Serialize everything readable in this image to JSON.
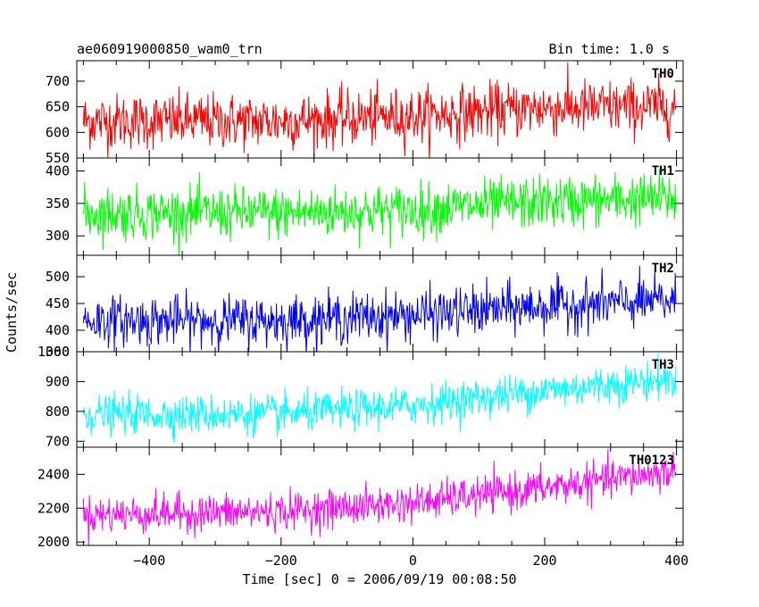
{
  "header": {
    "title": "ae060919000850_wam0_trn",
    "bin_time": "Bin time: 1.0 s"
  },
  "chart_data": {
    "type": "line",
    "xlabel": "Time [sec] 0 = 2006/09/19 00:08:50",
    "ylabel": "Counts/sec",
    "xlim": [
      -510,
      410
    ],
    "x_ticks": [
      -400,
      -200,
      0,
      200,
      400
    ],
    "x_tick_labels": [
      "−400",
      "−200",
      "0",
      "200",
      "400"
    ],
    "x_data_range": [
      -500,
      399
    ],
    "bin_time_s": 1.0,
    "panels": [
      {
        "name": "TH0",
        "color": "#ff0000",
        "ylim": [
          550,
          740
        ],
        "y_ticks": [
          550,
          600,
          650,
          700
        ],
        "y_tick_labels": [
          "550",
          "600",
          "650",
          "700"
        ],
        "trend": {
          "x": [
            -500,
            -200,
            0,
            200,
            400
          ],
          "y": [
            622,
            622,
            632,
            648,
            650
          ]
        },
        "noise_sd": 27
      },
      {
        "name": "TH1",
        "color": "#00ff00",
        "ylim": [
          270,
          420
        ],
        "y_ticks": [
          300,
          350,
          400
        ],
        "y_tick_labels": [
          "300",
          "350",
          "400"
        ],
        "trend": {
          "x": [
            -500,
            -200,
            0,
            200,
            400
          ],
          "y": [
            335,
            335,
            340,
            352,
            358
          ]
        },
        "noise_sd": 20
      },
      {
        "name": "TH2",
        "color": "#0000ff",
        "ylim": [
          360,
          540
        ],
        "y_ticks": [
          360,
          400,
          450,
          500
        ],
        "y_tick_labels": [
          "360",
          "400",
          "450",
          "500"
        ],
        "trend": {
          "x": [
            -500,
            -200,
            0,
            200,
            400
          ],
          "y": [
            418,
            418,
            428,
            445,
            455
          ]
        },
        "noise_sd": 23
      },
      {
        "name": "TH3",
        "color": "#00ffff",
        "ylim": [
          680,
          1000
        ],
        "y_ticks": [
          700,
          800,
          900,
          1000
        ],
        "y_tick_labels": [
          "700",
          "800",
          "900",
          "1000"
        ],
        "trend": {
          "x": [
            -500,
            -200,
            0,
            200,
            400
          ],
          "y": [
            790,
            790,
            820,
            870,
            910
          ]
        },
        "noise_sd": 32
      },
      {
        "name": "TH0123",
        "color": "#ff00ff",
        "ylim": [
          1980,
          2560
        ],
        "y_ticks": [
          2000,
          2200,
          2400
        ],
        "y_tick_labels": [
          "2000",
          "2200",
          "2400"
        ],
        "trend": {
          "x": [
            -500,
            -200,
            0,
            200,
            400
          ],
          "y": [
            2160,
            2180,
            2230,
            2320,
            2420
          ]
        },
        "noise_sd": 55
      }
    ]
  }
}
